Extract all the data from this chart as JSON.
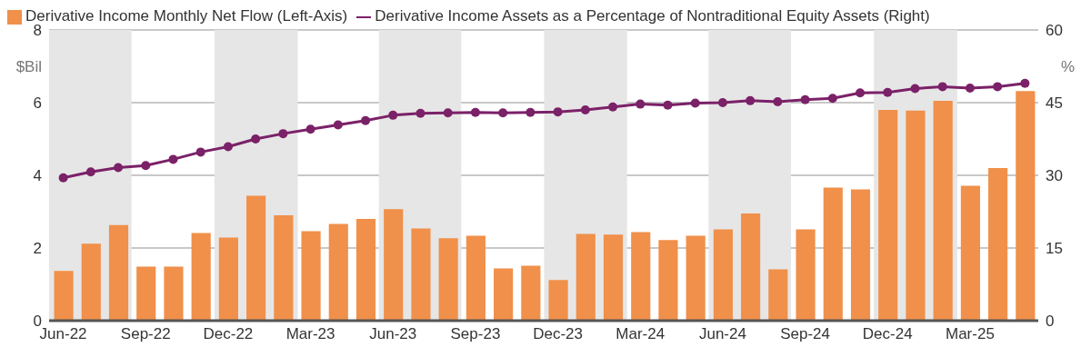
{
  "chart_data": {
    "type": "bar",
    "x": [
      "2022-06",
      "2022-07",
      "2022-08",
      "2022-09",
      "2022-10",
      "2022-11",
      "2022-12",
      "2023-01",
      "2023-02",
      "2023-03",
      "2023-04",
      "2023-05",
      "2023-06",
      "2023-07",
      "2023-08",
      "2023-09",
      "2023-10",
      "2023-11",
      "2023-12",
      "2024-01",
      "2024-02",
      "2024-03",
      "2024-04",
      "2024-05",
      "2024-06",
      "2024-07",
      "2024-08",
      "2024-09",
      "2024-10",
      "2024-11",
      "2024-12",
      "2025-01",
      "2025-02",
      "2025-03",
      "2025-04",
      "2025-05"
    ],
    "series": [
      {
        "name": "Derivative Income Monthly Net Flow (Left-Axis)",
        "color": "#f0904a",
        "values": [
          1.37,
          2.12,
          2.63,
          1.49,
          1.49,
          2.41,
          2.29,
          3.44,
          2.9,
          2.46,
          2.66,
          2.8,
          3.07,
          2.54,
          2.27,
          2.34,
          1.44,
          1.51,
          1.12,
          2.39,
          2.37,
          2.44,
          2.22,
          2.34,
          2.51,
          2.95,
          1.41,
          2.51,
          3.66,
          3.61,
          5.8,
          5.78,
          6.05,
          3.71,
          4.2,
          6.32
        ]
      },
      {
        "name": "Derivative Income Assets as a Percentage of Nontraditional Equity Assets (Right)",
        "type": "line",
        "axis": "y2",
        "color": "#7b2168",
        "values": [
          29.5,
          30.7,
          31.6,
          32.0,
          33.3,
          34.8,
          35.9,
          37.5,
          38.6,
          39.5,
          40.4,
          41.3,
          42.4,
          42.8,
          42.9,
          43.0,
          42.9,
          43.0,
          43.1,
          43.5,
          44.1,
          44.7,
          44.5,
          44.9,
          45.0,
          45.4,
          45.2,
          45.6,
          45.9,
          47.0,
          47.1,
          47.9,
          48.3,
          48.0,
          48.3,
          49.0
        ]
      }
    ],
    "ylabel": "$Bil",
    "y2label": "%",
    "xlim": [
      "2022-05-16",
      "2025-05-16"
    ],
    "xticks": [
      {
        "value": "2022-06",
        "label": "Jun-22"
      },
      {
        "value": "2022-09",
        "label": "Sep-22"
      },
      {
        "value": "2022-12",
        "label": "Dec-22"
      },
      {
        "value": "2023-03",
        "label": "Mar-23"
      },
      {
        "value": "2023-06",
        "label": "Jun-23"
      },
      {
        "value": "2023-09",
        "label": "Sep-23"
      },
      {
        "value": "2023-12",
        "label": "Dec-23"
      },
      {
        "value": "2024-03",
        "label": "Mar-24"
      },
      {
        "value": "2024-06",
        "label": "Jun-24"
      },
      {
        "value": "2024-09",
        "label": "Sep-24"
      },
      {
        "value": "2024-12",
        "label": "Dec-24"
      },
      {
        "value": "2025-03",
        "label": "Mar-25"
      }
    ],
    "ylim": [
      0,
      8
    ],
    "yticks": [
      0,
      2,
      4,
      6,
      8
    ],
    "y2lim": [
      0,
      60
    ],
    "y2ticks": [
      0,
      15,
      30,
      45,
      60
    ],
    "bands": [
      {
        "axis": "x",
        "from": "2022-05-16",
        "to": "2022-08-16",
        "color": "#e6e6e6"
      },
      {
        "axis": "x",
        "from": "2022-11-16",
        "to": "2023-02-16",
        "color": "#e6e6e6"
      },
      {
        "axis": "x",
        "from": "2023-05-16",
        "to": "2023-08-16",
        "color": "#e6e6e6"
      },
      {
        "axis": "x",
        "from": "2023-11-16",
        "to": "2024-02-16",
        "color": "#e6e6e6"
      },
      {
        "axis": "x",
        "from": "2024-05-16",
        "to": "2024-08-16",
        "color": "#e6e6e6"
      },
      {
        "axis": "x",
        "from": "2024-11-16",
        "to": "2025-02-16",
        "color": "#e6e6e6"
      }
    ],
    "grid": "y",
    "legend": "top left",
    "marker": "circle",
    "line_style": "solid"
  }
}
